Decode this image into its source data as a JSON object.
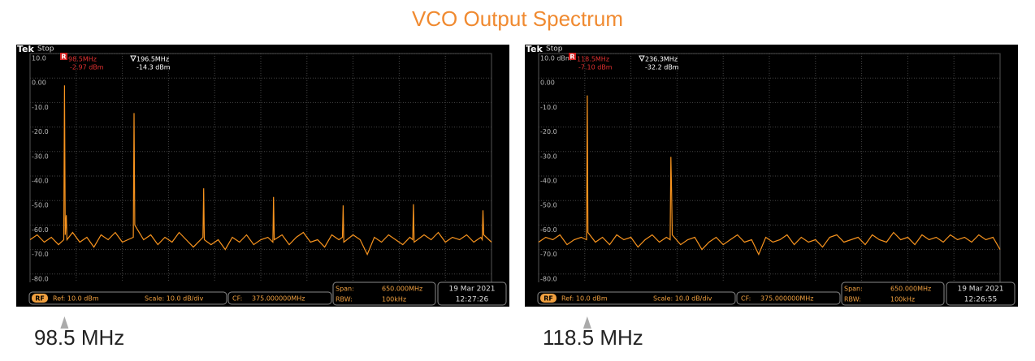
{
  "title": "VCO Output Spectrum",
  "chart_data": [
    {
      "type": "line",
      "brand": "Tek",
      "status": "Stop",
      "marker_icon": "R",
      "markers": [
        {
          "label": "98.5MHz",
          "level": "-2.97 dBm"
        },
        {
          "label": "196.5MHz",
          "level": "-14.3 dBm"
        }
      ],
      "badge": "RF",
      "ref": "Ref: 10.0 dBm",
      "scale": "Scale: 10.0 dB/div",
      "cf_label": "CF:",
      "cf": "375.000000MHz",
      "span_label": "Span:",
      "span": "650.000MHz",
      "rbw_label": "RBW:",
      "rbw": "100kHz",
      "date": "19 Mar  2021",
      "time": "12:27:26",
      "annotation": "98.5 MHz",
      "color": "#f7931e",
      "grid": true,
      "xlim": [
        50,
        700
      ],
      "ylim": [
        -90,
        10
      ],
      "yticks": [
        {
          "value": 10,
          "label": "10.0"
        },
        {
          "value": 0,
          "label": "0.00"
        },
        {
          "value": -10,
          "label": "-10.0"
        },
        {
          "value": -20,
          "label": "-20.0"
        },
        {
          "value": -30,
          "label": "-30.0"
        },
        {
          "value": -40,
          "label": "-40.0"
        },
        {
          "value": -50,
          "label": "-50.0"
        },
        {
          "value": -60,
          "label": "-60.0"
        },
        {
          "value": -70,
          "label": "-70.0"
        },
        {
          "value": -80,
          "label": "-80.0"
        }
      ],
      "x": [
        50,
        60,
        70,
        80,
        90,
        97.5,
        98.5,
        99.5,
        101,
        102,
        110,
        120,
        130,
        140,
        150,
        160,
        170,
        180,
        195.5,
        196.5,
        197.5,
        210,
        220,
        230,
        240,
        250,
        260,
        270,
        280,
        293.5,
        294.5,
        295.5,
        305,
        315,
        325,
        335,
        345,
        355,
        365,
        375,
        385,
        392,
        393,
        394,
        405,
        415,
        425,
        435,
        445,
        455,
        465,
        475,
        485,
        490,
        491,
        492,
        505,
        515,
        525,
        535,
        545,
        555,
        565,
        575,
        585,
        589,
        590,
        591,
        605,
        615,
        625,
        635,
        645,
        655,
        665,
        675,
        685,
        687,
        688,
        689,
        700
      ],
      "values": [
        -66,
        -64,
        -67,
        -65,
        -68,
        -66,
        -2.97,
        -64,
        -56,
        -66,
        -63,
        -67,
        -65,
        -69,
        -64,
        -66,
        -63,
        -67,
        -65,
        -14.3,
        -60,
        -66,
        -64,
        -68,
        -65,
        -67,
        -63,
        -66,
        -69,
        -65,
        -45,
        -66,
        -68,
        -66,
        -70,
        -65,
        -67,
        -64,
        -68,
        -66,
        -65,
        -67,
        -48.5,
        -66,
        -64,
        -68,
        -65,
        -63,
        -67,
        -66,
        -69,
        -64,
        -66,
        -65,
        -52,
        -67,
        -64,
        -66,
        -72,
        -65,
        -67,
        -64,
        -66,
        -68,
        -65,
        -66,
        -51.5,
        -67,
        -64,
        -66,
        -63,
        -67,
        -65,
        -66,
        -64,
        -67,
        -65,
        -66,
        -54,
        -64,
        -67
      ]
    },
    {
      "type": "line",
      "brand": "Tek",
      "status": "Stop",
      "marker_icon": "R",
      "markers": [
        {
          "label": "118.5MHz",
          "level": "-7.10 dBm"
        },
        {
          "label": "236.3MHz",
          "level": "-32.2 dBm"
        }
      ],
      "badge": "RF",
      "ref": "Ref: 10.0 dBm",
      "scale": "Scale: 10.0 dB/div",
      "cf_label": "CF:",
      "cf": "375.000000MHz",
      "span_label": "Span:",
      "span": "650.000MHz",
      "rbw_label": "RBW:",
      "rbw": "100kHz",
      "date": "19 Mar  2021",
      "time": "12:26:55",
      "annotation": "118.5 MHz",
      "color": "#f7931e",
      "grid": true,
      "xlim": [
        50,
        700
      ],
      "ylim": [
        -90,
        10
      ],
      "yticks": [
        {
          "value": 10,
          "label": "10.0 dBm"
        },
        {
          "value": 0,
          "label": "0.00"
        },
        {
          "value": -10,
          "label": "-10.0"
        },
        {
          "value": -20,
          "label": "-20.0"
        },
        {
          "value": -30,
          "label": "-30.0"
        },
        {
          "value": -40,
          "label": "-40.0"
        },
        {
          "value": -50,
          "label": "-50.0"
        },
        {
          "value": -60,
          "label": "-60.0"
        },
        {
          "value": -70,
          "label": "-70.0"
        },
        {
          "value": -80,
          "label": "-80.0"
        }
      ],
      "x": [
        50,
        60,
        70,
        80,
        90,
        100,
        110,
        117.5,
        118.5,
        119.5,
        130,
        140,
        150,
        160,
        170,
        180,
        190,
        200,
        210,
        220,
        230,
        235.3,
        236.3,
        237.3,
        238.3,
        250,
        260,
        270,
        280,
        290,
        300,
        310,
        320,
        330,
        340,
        350,
        360,
        370,
        380,
        390,
        400,
        410,
        420,
        430,
        440,
        450,
        460,
        470,
        480,
        490,
        500,
        510,
        520,
        530,
        540,
        550,
        560,
        570,
        580,
        590,
        600,
        610,
        620,
        630,
        640,
        650,
        660,
        670,
        680,
        690,
        700
      ],
      "values": [
        -67,
        -65,
        -66,
        -64,
        -68,
        -66,
        -65,
        -66,
        -7.1,
        -63,
        -67,
        -65,
        -68,
        -64,
        -66,
        -65,
        -69,
        -66,
        -64,
        -67,
        -65,
        -66,
        -32.2,
        -47,
        -64,
        -68,
        -66,
        -65,
        -70,
        -67,
        -65,
        -68,
        -66,
        -64,
        -67,
        -66,
        -72,
        -65,
        -67,
        -66,
        -64,
        -68,
        -65,
        -67,
        -66,
        -69,
        -65,
        -64,
        -67,
        -66,
        -65,
        -68,
        -64,
        -66,
        -67,
        -63,
        -66,
        -65,
        -68,
        -64,
        -66,
        -65,
        -67,
        -64,
        -66,
        -65,
        -67,
        -64,
        -66,
        -65,
        -70
      ]
    }
  ]
}
